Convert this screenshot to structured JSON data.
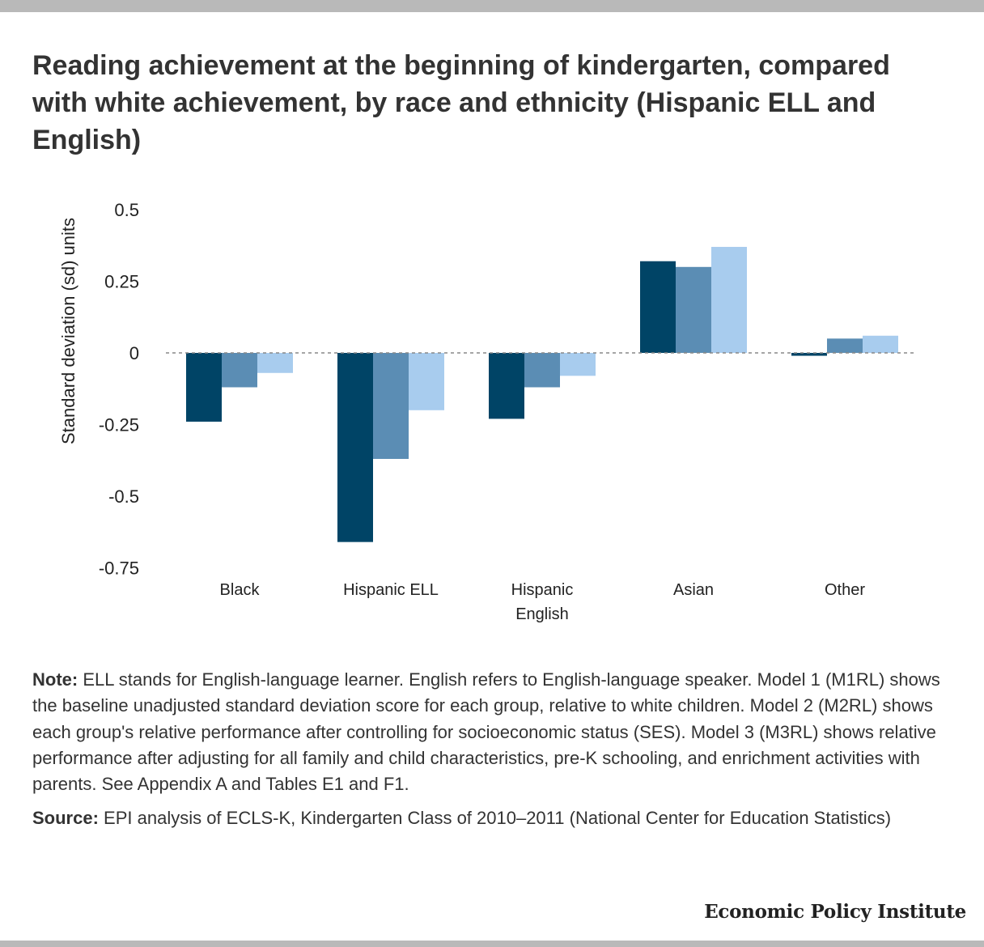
{
  "title": "Reading achievement at the beginning of kindergarten, compared with white achievement, by race and ethnicity (Hispanic ELL and English)",
  "note_label": "Note:",
  "note_text": " ELL stands for English-language learner. English refers to English-language speaker. Model 1 (M1RL) shows the baseline unadjusted standard deviation score for each group, relative to white children. Model 2 (M2RL) shows each group's relative performance after controlling for socioeconomic status (SES). Model 3 (M3RL) shows relative performance after adjusting for all family and child characteristics, pre-K schooling, and enrichment activities with parents. See Appendix A and Tables E1 and F1.",
  "source_label": "Source:",
  "source_text": " EPI analysis of ECLS-K, Kindergarten Class of 2010–2011 (National Center for Education Statistics)",
  "brand": "Economic Policy Institute",
  "chart_data": {
    "type": "bar",
    "title": "Reading achievement at the beginning of kindergarten, compared with white achievement, by race and ethnicity (Hispanic ELL and English)",
    "ylabel": "Standard deviation (sd) units",
    "xlabel": "",
    "ylim": [
      -0.75,
      0.5
    ],
    "yticks": [
      0.5,
      0.25,
      0,
      -0.25,
      -0.5,
      -0.75
    ],
    "ytick_labels": [
      "0.5",
      "0.25",
      "0",
      "-0.25",
      "-0.5",
      "-0.75"
    ],
    "categories": [
      [
        "Black"
      ],
      [
        "Hispanic ELL"
      ],
      [
        "Hispanic",
        "English"
      ],
      [
        "Asian"
      ],
      [
        "Other"
      ]
    ],
    "series": [
      {
        "values": [
          -0.24,
          -0.66,
          -0.23,
          0.32,
          -0.01
        ],
        "color": "#004466"
      },
      {
        "values": [
          -0.12,
          -0.37,
          -0.12,
          0.3,
          0.05
        ],
        "color": "#5b8db4"
      },
      {
        "values": [
          -0.07,
          -0.2,
          -0.08,
          0.37,
          0.06
        ],
        "color": "#a8ccee"
      }
    ],
    "zero_line": "dashed",
    "grid": false,
    "legend": "none"
  }
}
